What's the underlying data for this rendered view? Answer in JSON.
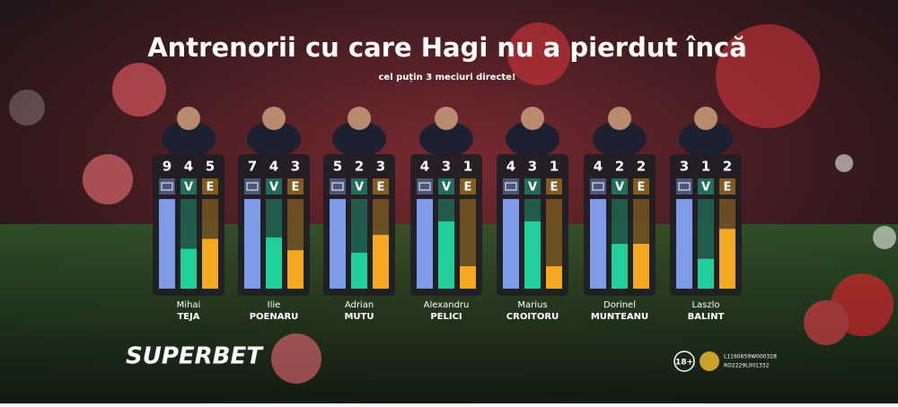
{
  "chart_data": {
    "type": "bar",
    "title": "Antrenorii cu care Hagi nu a pierdut încă",
    "subtitle": "cel puțin 3 meciuri directe!",
    "categories": [
      [
        "Mihai",
        "TEJA"
      ],
      [
        "Ilie",
        "POENARU"
      ],
      [
        "Adrian",
        "MUTU"
      ],
      [
        "Alexandru",
        "PELICI"
      ],
      [
        "Marius",
        "CROITORU"
      ],
      [
        "Dorinel",
        "MUNTEANU"
      ],
      [
        "Laszlo",
        "BALINT"
      ]
    ],
    "series": [
      {
        "color": "#7d9be8",
        "values": [
          9,
          7,
          5,
          4,
          4,
          4,
          3
        ]
      },
      {
        "name": "V",
        "color": "#1fcf9c",
        "values": [
          4,
          4,
          2,
          3,
          3,
          2,
          1
        ]
      },
      {
        "name": "E",
        "color": "#f6a61f",
        "values": [
          5,
          3,
          3,
          1,
          1,
          2,
          2
        ]
      }
    ]
  },
  "brand": "SUPERBET",
  "age": "18+",
  "licenses": [
    "L1160659W000328",
    "RO2229L001332"
  ]
}
